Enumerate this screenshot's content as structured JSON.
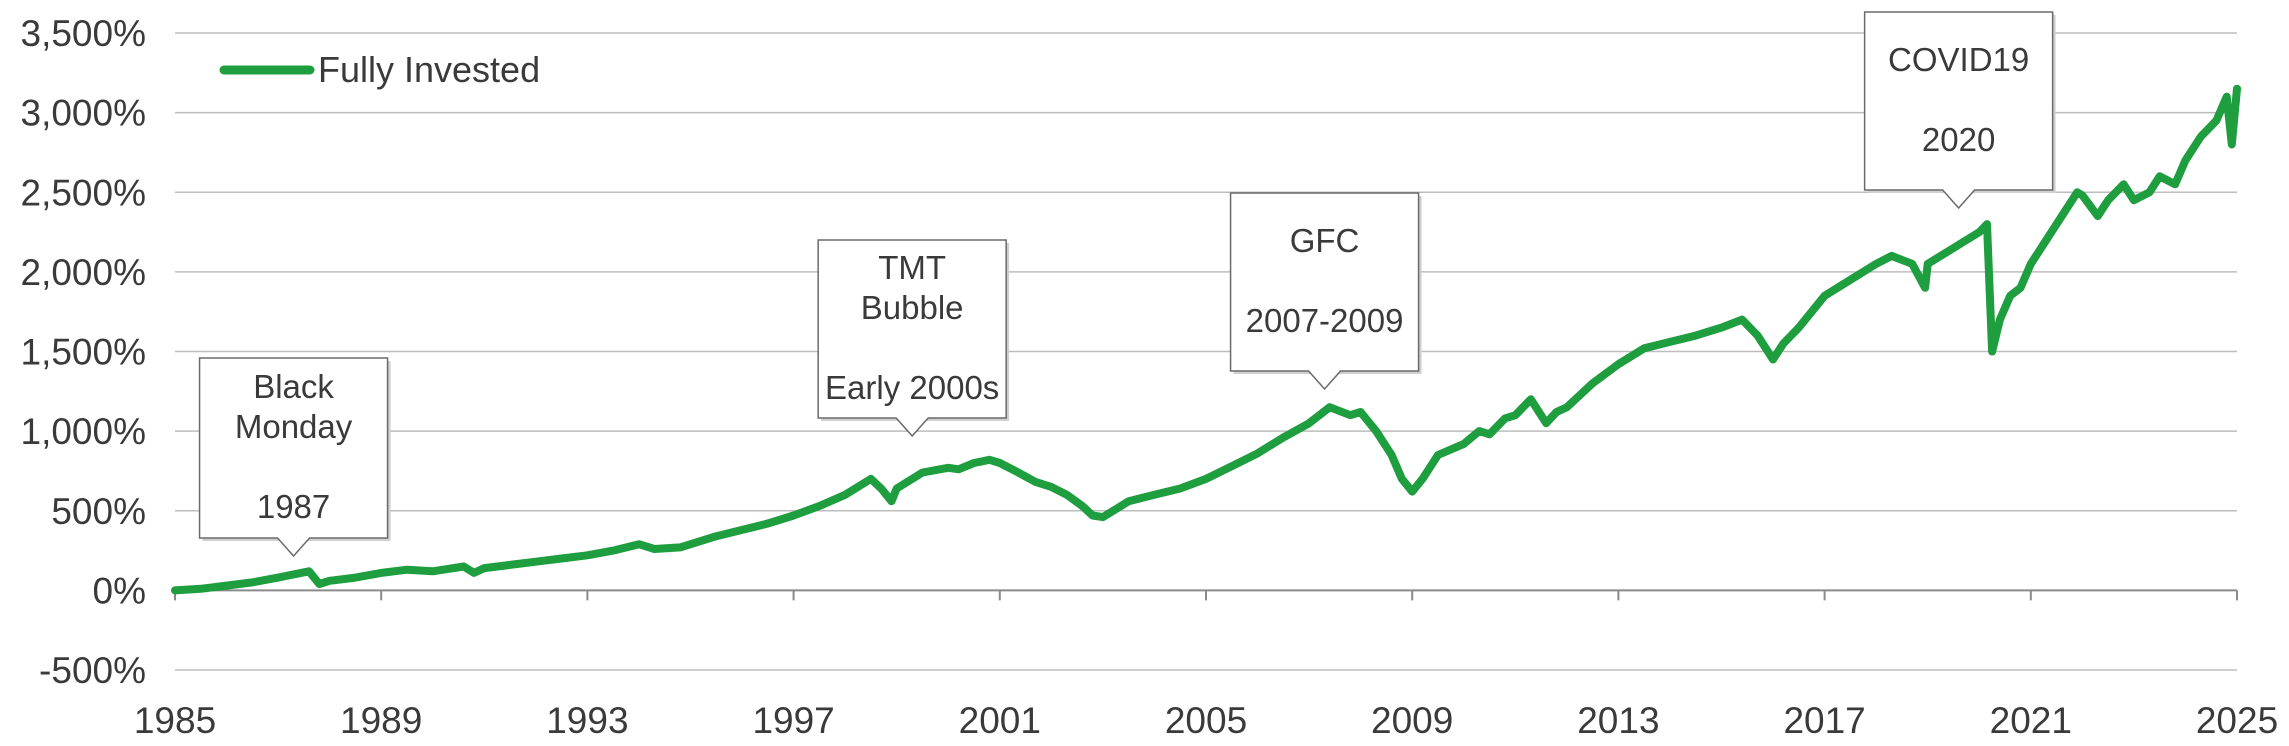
{
  "chart_data": {
    "type": "line",
    "title": "",
    "xlabel": "",
    "ylabel": "",
    "xlim": [
      1985,
      2025
    ],
    "ylim": [
      -500,
      3500
    ],
    "grid": "horizontal",
    "legend_placement": "top-left",
    "x_ticks": [
      "1985",
      "1989",
      "1993",
      "1997",
      "2001",
      "2005",
      "2009",
      "2013",
      "2017",
      "2021",
      "2025"
    ],
    "y_ticks": [
      "-500%",
      "0%",
      "500%",
      "1,000%",
      "1,500%",
      "2,000%",
      "2,500%",
      "3,000%",
      "3,500%"
    ],
    "series": [
      {
        "name": "Fully Invested",
        "color": "#1e9e3e",
        "x": [
          1985.0,
          1985.5,
          1986.0,
          1986.5,
          1987.0,
          1987.6,
          1987.8,
          1988.0,
          1988.5,
          1989.0,
          1989.5,
          1990.0,
          1990.6,
          1990.8,
          1991.0,
          1991.5,
          1992.0,
          1992.5,
          1993.0,
          1993.5,
          1994.0,
          1994.3,
          1994.8,
          1995.0,
          1995.5,
          1996.0,
          1996.5,
          1997.0,
          1997.5,
          1998.0,
          1998.5,
          1998.7,
          1998.9,
          1999.0,
          1999.5,
          2000.0,
          2000.2,
          2000.5,
          2000.8,
          2001.0,
          2001.3,
          2001.7,
          2002.0,
          2002.3,
          2002.6,
          2002.8,
          2003.0,
          2003.3,
          2003.5,
          2004.0,
          2004.5,
          2005.0,
          2005.5,
          2006.0,
          2006.5,
          2007.0,
          2007.4,
          2007.8,
          2008.0,
          2008.3,
          2008.6,
          2008.8,
          2009.0,
          2009.2,
          2009.5,
          2010.0,
          2010.3,
          2010.5,
          2010.8,
          2011.0,
          2011.3,
          2011.6,
          2011.8,
          2012.0,
          2012.5,
          2013.0,
          2013.5,
          2014.0,
          2014.5,
          2015.0,
          2015.4,
          2015.7,
          2016.0,
          2016.2,
          2016.5,
          2017.0,
          2017.5,
          2018.0,
          2018.3,
          2018.7,
          2018.95,
          2019.0,
          2019.5,
          2020.0,
          2020.15,
          2020.25,
          2020.4,
          2020.6,
          2020.8,
          2021.0,
          2021.5,
          2021.9,
          2022.0,
          2022.3,
          2022.5,
          2022.8,
          2023.0,
          2023.3,
          2023.5,
          2023.8,
          2024.0,
          2024.3,
          2024.6,
          2024.8,
          2024.9,
          2025.0
        ],
        "values": [
          0,
          10,
          30,
          50,
          80,
          120,
          40,
          60,
          80,
          110,
          130,
          120,
          150,
          110,
          140,
          160,
          180,
          200,
          220,
          250,
          290,
          260,
          270,
          290,
          340,
          380,
          420,
          470,
          530,
          600,
          700,
          640,
          560,
          640,
          740,
          770,
          760,
          800,
          820,
          800,
          750,
          680,
          650,
          600,
          530,
          470,
          460,
          520,
          560,
          600,
          640,
          700,
          780,
          860,
          960,
          1050,
          1150,
          1100,
          1120,
          1000,
          850,
          700,
          620,
          700,
          850,
          920,
          1000,
          980,
          1080,
          1100,
          1200,
          1050,
          1120,
          1150,
          1300,
          1420,
          1520,
          1560,
          1600,
          1650,
          1700,
          1600,
          1450,
          1550,
          1650,
          1850,
          1950,
          2050,
          2100,
          2050,
          1900,
          2050,
          2150,
          2250,
          2300,
          1500,
          1700,
          1850,
          1900,
          2050,
          2300,
          2500,
          2480,
          2350,
          2450,
          2550,
          2450,
          2500,
          2600,
          2550,
          2700,
          2850,
          2950,
          3100,
          2800,
          3150
        ]
      }
    ],
    "annotations": [
      {
        "lines": [
          "Black",
          "Monday",
          "",
          "1987"
        ],
        "x": 1987.3
      },
      {
        "lines": [
          "TMT",
          "Bubble",
          "",
          "Early 2000s"
        ],
        "x": 1999.3
      },
      {
        "lines": [
          "GFC",
          "",
          "2007-2009"
        ],
        "x": 2007.3
      },
      {
        "lines": [
          "COVID19",
          "",
          "2020"
        ],
        "x": 2019.6
      }
    ]
  }
}
